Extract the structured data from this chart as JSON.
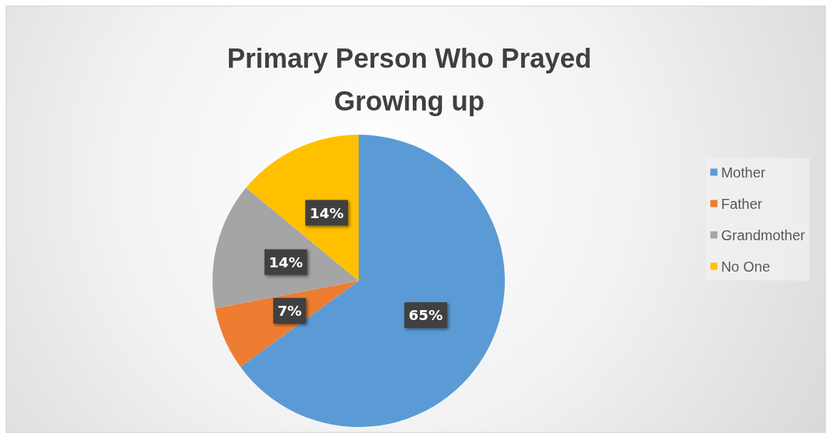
{
  "chart_data": {
    "type": "pie",
    "title": "Primary Person Who Prayed\nGrowing up",
    "categories": [
      "Mother",
      "Father",
      "Grandmother",
      "No One"
    ],
    "values": [
      65,
      7,
      14,
      14
    ],
    "colors": [
      "#5b9bd5",
      "#ed7d31",
      "#a5a5a5",
      "#ffc000"
    ],
    "value_labels": [
      "65%",
      "7%",
      "14%",
      "14%"
    ],
    "legend": "right"
  }
}
